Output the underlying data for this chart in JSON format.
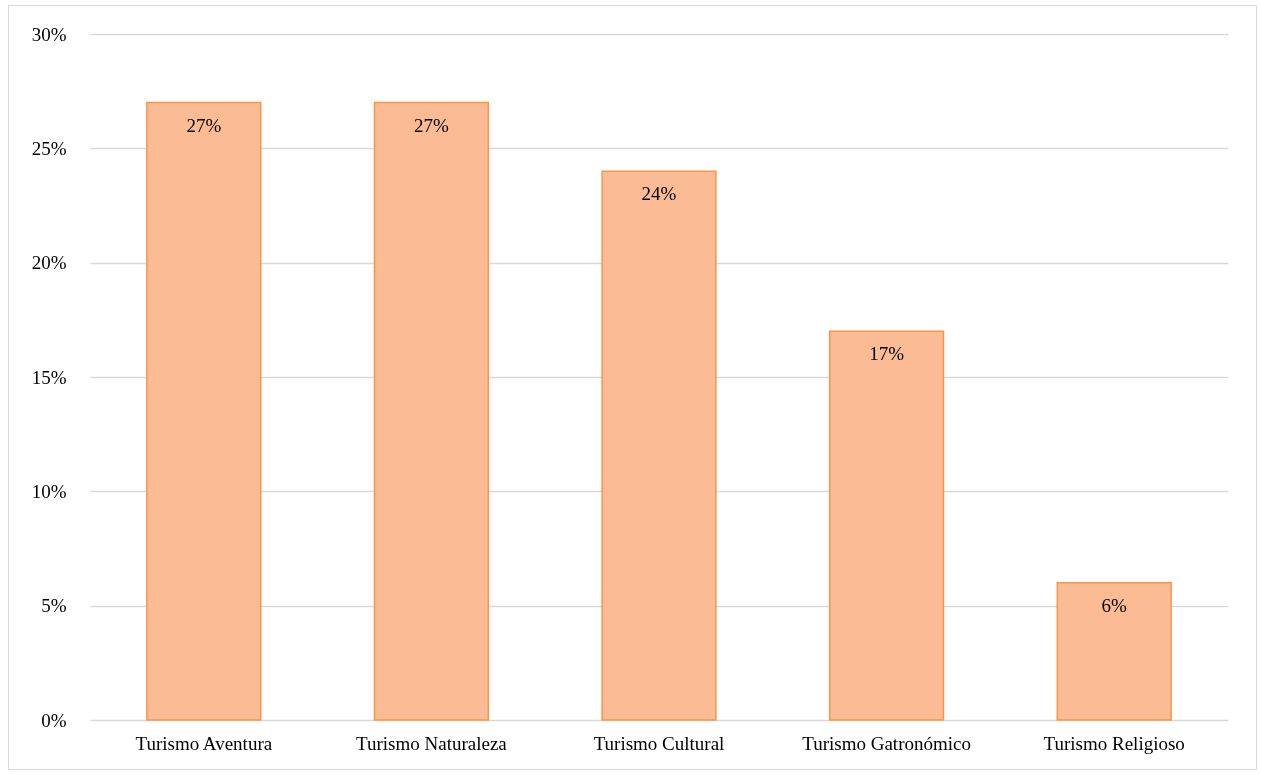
{
  "chart_data": {
    "type": "bar",
    "categories": [
      "Turismo Aventura",
      "Turismo Naturaleza",
      "Turismo Cultural",
      "Turismo Gatronómico",
      "Turismo Religioso"
    ],
    "values": [
      27,
      27,
      24,
      17,
      6
    ],
    "color": "#fbbb94",
    "ylim": [
      0,
      30
    ],
    "yticks": [
      {
        "value": 0,
        "label": "0%"
      },
      {
        "value": 5,
        "label": "5%"
      },
      {
        "value": 10,
        "label": "10%"
      },
      {
        "value": 15,
        "label": "15%"
      },
      {
        "value": 20,
        "label": "20%"
      },
      {
        "value": 25,
        "label": "25%"
      },
      {
        "value": 30,
        "label": "30%"
      }
    ],
    "grid": "y",
    "value_labels": [
      "27%",
      "27%",
      "24%",
      "17%",
      "6%"
    ]
  }
}
